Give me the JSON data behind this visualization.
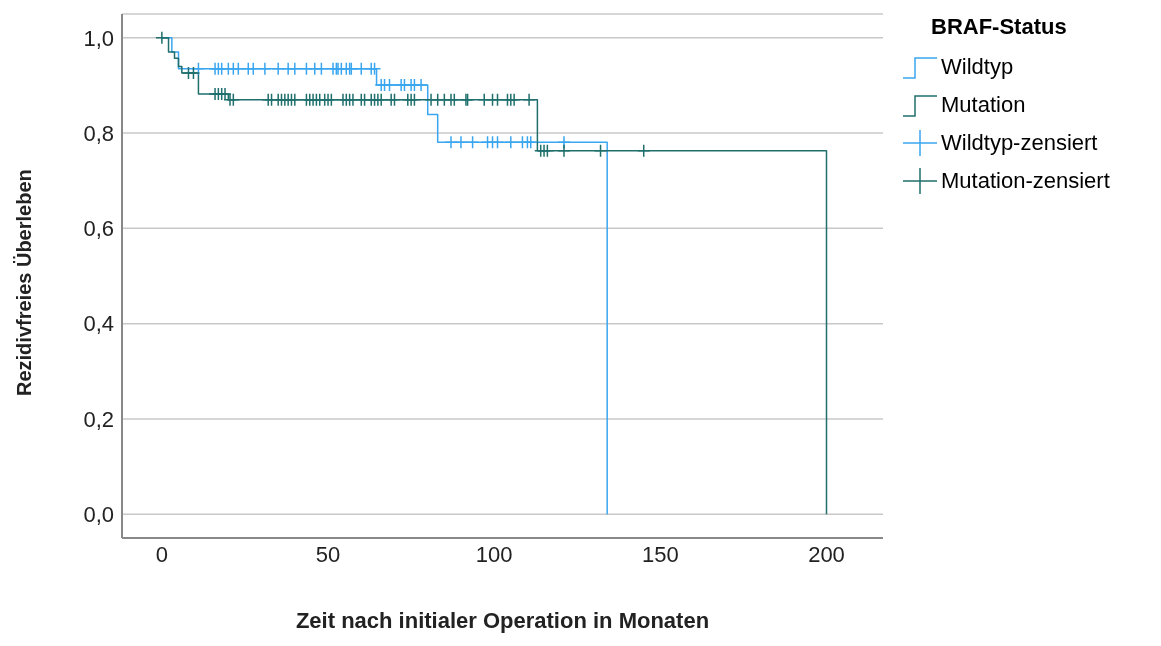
{
  "chart_data": {
    "type": "step",
    "xlabel": "Zeit nach initialer Operation in Monaten",
    "ylabel": "Rezidivfreies Überleben",
    "legend_title": "BRAF-Status",
    "legend": "right",
    "grid": "y",
    "xlim": [
      -12,
      217
    ],
    "xticks": [
      0,
      50,
      100,
      150,
      200
    ],
    "ylim": [
      -0.05,
      1.05
    ],
    "yticks": [
      {
        "value": 0,
        "label": "0,0"
      },
      {
        "value": 0.2,
        "label": "0,2"
      },
      {
        "value": 0.4,
        "label": "0,4"
      },
      {
        "value": 0.6,
        "label": "0,6"
      },
      {
        "value": 0.8,
        "label": "0,8"
      },
      {
        "value": 1,
        "label": "1,0"
      }
    ],
    "series": [
      {
        "name": "Wildtyp",
        "type": "step",
        "color": "#3aa6f0",
        "x": [
          0,
          3,
          5,
          64.6,
          80,
          83,
          134
        ],
        "values": [
          1,
          0.97,
          0.935,
          0.901,
          0.839,
          0.781,
          0
        ]
      },
      {
        "name": "Mutation",
        "type": "step",
        "color": "#1f6f6c",
        "x": [
          0,
          2,
          3.8,
          5,
          6,
          11,
          20,
          113,
          200
        ],
        "values": [
          1,
          0.97,
          0.957,
          0.94,
          0.926,
          0.882,
          0.87,
          0.763,
          0
        ]
      },
      {
        "name": "Wildtyp-zensiert",
        "type": "scatter",
        "marker": "cross",
        "color": "#3aa6f0",
        "x": [
          11,
          16,
          17,
          18,
          20,
          21.5,
          23,
          26,
          27.5,
          31,
          35,
          38,
          40,
          43.5,
          46,
          48,
          51.5,
          52.5,
          53,
          54,
          55.5,
          56.5,
          57,
          60,
          63,
          64,
          66,
          67,
          68.5,
          72,
          73,
          75,
          76,
          78,
          87,
          90,
          93.5,
          98,
          99.5,
          101,
          105,
          108.5,
          110,
          111,
          121
        ],
        "values": [
          0.935,
          0.935,
          0.935,
          0.935,
          0.935,
          0.935,
          0.935,
          0.935,
          0.935,
          0.935,
          0.935,
          0.935,
          0.935,
          0.935,
          0.935,
          0.935,
          0.935,
          0.935,
          0.935,
          0.935,
          0.935,
          0.935,
          0.935,
          0.935,
          0.935,
          0.935,
          0.901,
          0.901,
          0.901,
          0.901,
          0.901,
          0.901,
          0.901,
          0.901,
          0.781,
          0.781,
          0.781,
          0.781,
          0.781,
          0.781,
          0.781,
          0.781,
          0.781,
          0.781,
          0.781
        ]
      },
      {
        "name": "Mutation-zensiert",
        "type": "scatter",
        "marker": "cross",
        "color": "#1f6f6c",
        "x": [
          0,
          8,
          9.5,
          16,
          17,
          18,
          19,
          20.5,
          21.5,
          32,
          33,
          35,
          36,
          37,
          38,
          39,
          40,
          43.5,
          44.5,
          45.5,
          46.5,
          47.5,
          49,
          50,
          51,
          54.5,
          55.5,
          56.5,
          57.5,
          60,
          61,
          63,
          64,
          65,
          66,
          69,
          70,
          74,
          75,
          76,
          81,
          83,
          85,
          87,
          88,
          91.5,
          92,
          97,
          99.5,
          101,
          104,
          105,
          106,
          110.5,
          114,
          115,
          116,
          121,
          132,
          145
        ],
        "values": [
          1,
          0.926,
          0.926,
          0.882,
          0.882,
          0.882,
          0.882,
          0.87,
          0.87,
          0.87,
          0.87,
          0.87,
          0.87,
          0.87,
          0.87,
          0.87,
          0.87,
          0.87,
          0.87,
          0.87,
          0.87,
          0.87,
          0.87,
          0.87,
          0.87,
          0.87,
          0.87,
          0.87,
          0.87,
          0.87,
          0.87,
          0.87,
          0.87,
          0.87,
          0.87,
          0.87,
          0.87,
          0.87,
          0.87,
          0.87,
          0.87,
          0.87,
          0.87,
          0.87,
          0.87,
          0.87,
          0.87,
          0.87,
          0.87,
          0.87,
          0.87,
          0.87,
          0.87,
          0.87,
          0.763,
          0.763,
          0.763,
          0.763,
          0.763,
          0.763
        ]
      }
    ]
  }
}
